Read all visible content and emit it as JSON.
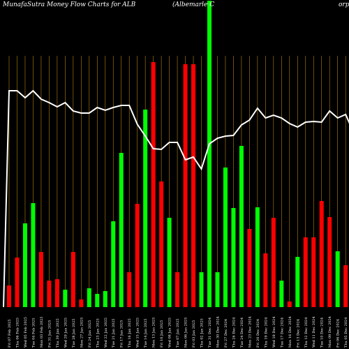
{
  "chart_data": {
    "type": "bar",
    "title": "MunafaSutra  Money Flow  Charts for ALB",
    "subtitle": "(Albemarle  C",
    "title_right": "orp",
    "colors": {
      "up": "#00ff00",
      "down": "#ff0000",
      "line": "#ffffff",
      "grid": "#b8860b",
      "background": "#000000"
    },
    "categories": [
      "Fri 07 Feb 2025",
      "Thu 06 Feb 2025",
      "Wed 05 Feb 2025",
      "Tue 04 Feb 2025",
      "Mon 03 Feb 2025",
      "Fri 31 Jan 2025",
      "Thu 30 Jan 2025",
      "Wed 29 Jan 2025",
      "Tue 28 Jan 2025",
      "Mon 27 Jan 2025",
      "Fri 24 Jan 2025",
      "Thu 23 Jan 2025",
      "Wed 22 Jan 2025",
      "Tue 21 Jan 2025",
      "Fri 17 Jan 2025",
      "Thu 16 Jan 2025",
      "Wed 15 Jan 2025",
      "Tue 14 Jan 2025",
      "Mon 13 Jan 2025",
      "Fri 10 Jan 2025",
      "Wed 08 Jan 2025",
      "Tue 07 Jan 2025",
      "Mon 06 Jan 2025",
      "Fri 03 Jan 2025",
      "Thu 02 Jan 2025",
      "Tue 31 Dec 2024",
      "Mon 30 Dec 2024",
      "Fri 27 Dec 2024",
      "Thu 26 Dec 2024",
      "Tue 24 Dec 2024",
      "Mon 23 Dec 2024",
      "Fri 20 Dec 2024",
      "Thu 19 Dec 2024",
      "Wed 18 Dec 2024",
      "Tue 17 Dec 2024",
      "Mon 16 Dec 2024",
      "Fri 13 Dec 2024",
      "Thu 12 Dec 2024",
      "Wed 11 Dec 2024",
      "Tue 10 Dec 2024",
      "Mon 09 Dec 2024",
      "Fri 06 Dec 2024",
      "Thu 05 Dec 2024",
      "Wed 04 Dec 2024",
      "Tue 03 Dec 2024"
    ],
    "xtick_labels": [
      "Fri 07 Feb 2025",
      "Thu 06 Feb 2025",
      "Wed 05 Feb 2025",
      "Tue 04 Feb 2025",
      "Mon 03 Feb 2025",
      "Fri 31 Jan 2025",
      "Thu 30 Jan 2025",
      "Wed 29 Jan 2025",
      "Tue 28 Jan 2025",
      "Mon 27 Jan 2025",
      "Fri 24 Jan 2025",
      "Thu 23 Jan 2025",
      "Wed 22 Jan 2025",
      "Tue 21 Jan 2025",
      "Fri 17 Jan 2025",
      "Thu 16 Jan 2025",
      "Wed 15 Jan 2025",
      "Tue 14 Jan 2025",
      "Mon 13 Jan 2025",
      "Fri 10 Jan 2025",
      "Wed 08 Jan 2025",
      "Tue 07 Jan 2025",
      "Mon 06 Jan 2025",
      "Fri 03 Jan 2025",
      "Thu 02 Jan 2025",
      "Tue 31 Dec 2024",
      "Mon 30 Dec 2024",
      "Fri 27 Dec 2024",
      "Thu 26 Dec 2024",
      "Tue 24 Dec 2024",
      "Mon 23 Dec 2024",
      "Fri 20 Dec 2024",
      "Thu 19 Dec 2024",
      "Wed 18 Dec 2024",
      "Tue 17 Dec 2024",
      "Mon 16 Dec 2024",
      "Fri 13 Dec 2024",
      "Thu 12 Dec 2024",
      "Wed 11 Dec 2024",
      "Tue 10 Dec 2024",
      "Mon 09 Dec 2024",
      "Fri 06 Dec 2024",
      "Thu 05 Dec 2024",
      "Wed 04 Dec 2024",
      "Tue 03 Dec 2024"
    ],
    "ylim": [
      0,
      440
    ],
    "bars": {
      "values": [
        31,
        71,
        120,
        149,
        79,
        38,
        40,
        25,
        79,
        11,
        27,
        19,
        23,
        123,
        221,
        50,
        148,
        283,
        351,
        180,
        128,
        50,
        348,
        348,
        50,
        439,
        50,
        200,
        142,
        231,
        112,
        143,
        77,
        128,
        38,
        8,
        72,
        100,
        100,
        152,
        129,
        80,
        60,
        79,
        82
      ],
      "direction": [
        "down",
        "down",
        "up",
        "up",
        "down",
        "down",
        "down",
        "up",
        "down",
        "down",
        "up",
        "up",
        "up",
        "up",
        "up",
        "down",
        "down",
        "up",
        "down",
        "down",
        "up",
        "down",
        "down",
        "down",
        "up",
        "up",
        "up",
        "up",
        "up",
        "up",
        "down",
        "up",
        "down",
        "down",
        "up",
        "down",
        "up",
        "down",
        "down",
        "down",
        "down",
        "up",
        "down",
        "up",
        "up"
      ]
    },
    "line": {
      "values": [
        310,
        310,
        300,
        310,
        298,
        293,
        287,
        293,
        281,
        278,
        278,
        286,
        282,
        286,
        289,
        289,
        262,
        245,
        227,
        226,
        236,
        236,
        211,
        215,
        198,
        234,
        242,
        245,
        246,
        261,
        268,
        285,
        271,
        275,
        271,
        263,
        258,
        265,
        266,
        265,
        281,
        271,
        276,
        250,
        252
      ]
    }
  }
}
